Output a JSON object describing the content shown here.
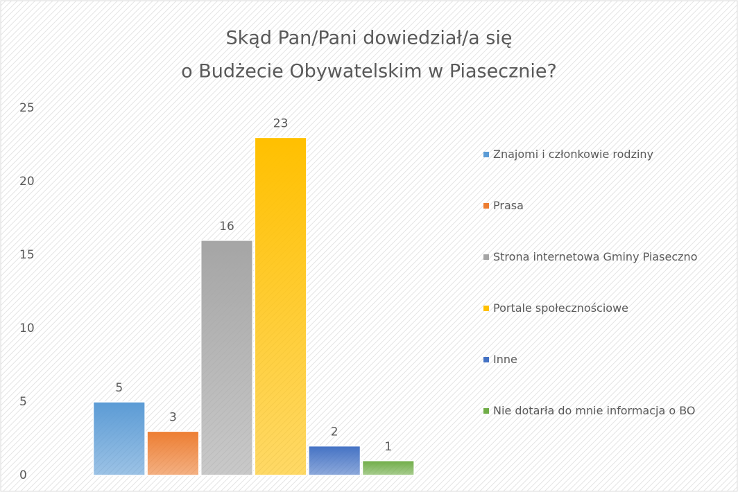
{
  "chart_data": {
    "type": "bar",
    "title": [
      "Skąd Pan/Pani dowiedział/a się",
      "o Budżecie Obywatelskim w Piasecznie?"
    ],
    "series": [
      {
        "name": "Znajomi i członkowie rodziny",
        "color": "#5b9bd5",
        "values": [
          5
        ]
      },
      {
        "name": "Prasa",
        "color": "#ed7d31",
        "values": [
          3
        ]
      },
      {
        "name": "Strona internetowa Gminy Piaseczno",
        "color": "#a5a5a5",
        "values": [
          16
        ]
      },
      {
        "name": "Portale społecznościowe",
        "color": "#ffc000",
        "values": [
          23
        ]
      },
      {
        "name": "Inne",
        "color": "#4472c4",
        "values": [
          2
        ]
      },
      {
        "name": "Nie dotarła do mnie informacja o BO",
        "color": "#70ad47",
        "values": [
          1
        ]
      }
    ],
    "ylim": [
      0,
      25
    ],
    "yticks": [
      0,
      5,
      10,
      15,
      20,
      25
    ],
    "grid": false,
    "legend": "right"
  }
}
